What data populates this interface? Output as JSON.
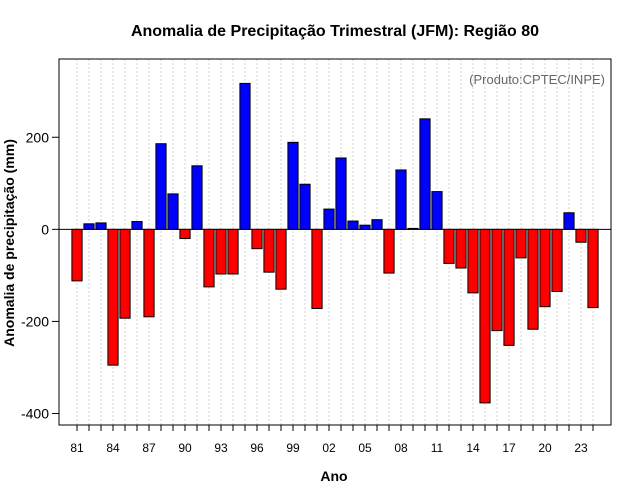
{
  "chart_data": {
    "type": "bar",
    "title": "Anomalia de Precipitação Trimestral (JFM): Região 80",
    "xlabel": "Ano",
    "ylabel": "Anomalia de precipitação (mm)",
    "credit": "(Produto:CPTEC/INPE)",
    "ylim": [
      -425,
      370
    ],
    "xlim": [
      1979.5,
      2025.5
    ],
    "y_ticks": [
      -400,
      -200,
      0,
      200
    ],
    "y_tick_labels": [
      "-400",
      "-200",
      "0",
      "200"
    ],
    "x_tick_years": [
      1981,
      1984,
      1987,
      1990,
      1993,
      1996,
      1999,
      2002,
      2005,
      2008,
      2011,
      2014,
      2017,
      2020,
      2023
    ],
    "x_tick_labels": [
      "81",
      "84",
      "87",
      "90",
      "93",
      "96",
      "99",
      "02",
      "05",
      "08",
      "11",
      "14",
      "17",
      "20",
      "23"
    ],
    "grid": true,
    "positive_color": "#0000ff",
    "negative_color": "#ff0000",
    "years": [
      1981,
      1982,
      1983,
      1984,
      1985,
      1986,
      1987,
      1988,
      1989,
      1990,
      1991,
      1992,
      1993,
      1994,
      1995,
      1996,
      1997,
      1998,
      1999,
      2000,
      2001,
      2002,
      2003,
      2004,
      2005,
      2006,
      2007,
      2008,
      2009,
      2010,
      2011,
      2012,
      2013,
      2014,
      2015,
      2016,
      2017,
      2018,
      2019,
      2020,
      2021,
      2022,
      2023,
      2024
    ],
    "values": [
      -112,
      12,
      14,
      -295,
      -193,
      17,
      -190,
      186,
      77,
      -20,
      138,
      -125,
      -97,
      -97,
      317,
      -42,
      -93,
      -130,
      189,
      98,
      -172,
      44,
      155,
      18,
      9,
      21,
      -95,
      129,
      2,
      240,
      82,
      -74,
      -84,
      -138,
      -377,
      -220,
      -252,
      -62,
      -217,
      -168,
      -135,
      36,
      -28,
      -170
    ]
  }
}
